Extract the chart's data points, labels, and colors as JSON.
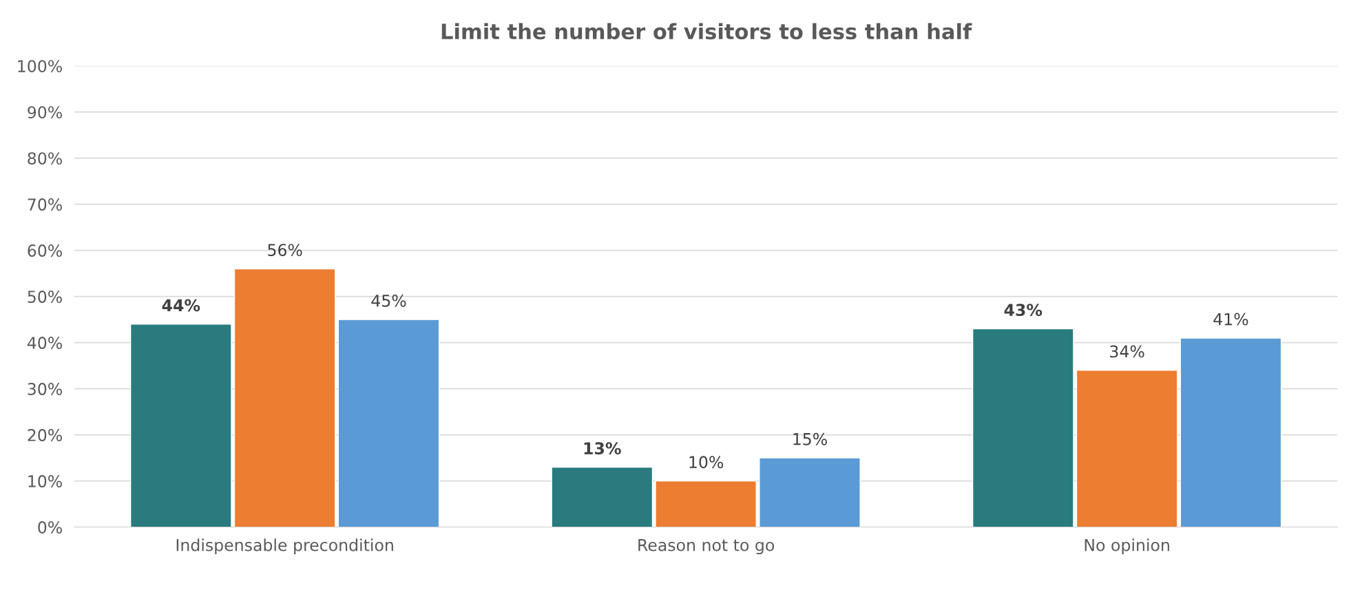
{
  "chart_data": {
    "type": "bar",
    "title": "Limit the number of visitors to less than half",
    "categories": [
      "Indispensable precondition",
      "Reason not to go",
      "No opinion"
    ],
    "series": [
      {
        "color": "#297b7e",
        "values": [
          44,
          13,
          43
        ],
        "value_labels": [
          "44%",
          "13%",
          "43%"
        ]
      },
      {
        "color": "#ed7d31",
        "values": [
          56,
          10,
          34
        ],
        "value_labels": [
          "56%",
          "10%",
          "34%"
        ]
      },
      {
        "color": "#5b9bd5",
        "values": [
          45,
          15,
          41
        ],
        "value_labels": [
          "45%",
          "15%",
          "41%"
        ]
      }
    ],
    "ylim": [
      0,
      100
    ],
    "yticks": [
      {
        "value": 0,
        "label": "0%"
      },
      {
        "value": 10,
        "label": "10%"
      },
      {
        "value": 20,
        "label": "20%"
      },
      {
        "value": 30,
        "label": "30%"
      },
      {
        "value": 40,
        "label": "40%"
      },
      {
        "value": 50,
        "label": "50%"
      },
      {
        "value": 60,
        "label": "60%"
      },
      {
        "value": 70,
        "label": "70%"
      },
      {
        "value": 80,
        "label": "80%"
      },
      {
        "value": 90,
        "label": "90%"
      },
      {
        "value": 100,
        "label": "100%"
      }
    ],
    "grid": "y"
  }
}
